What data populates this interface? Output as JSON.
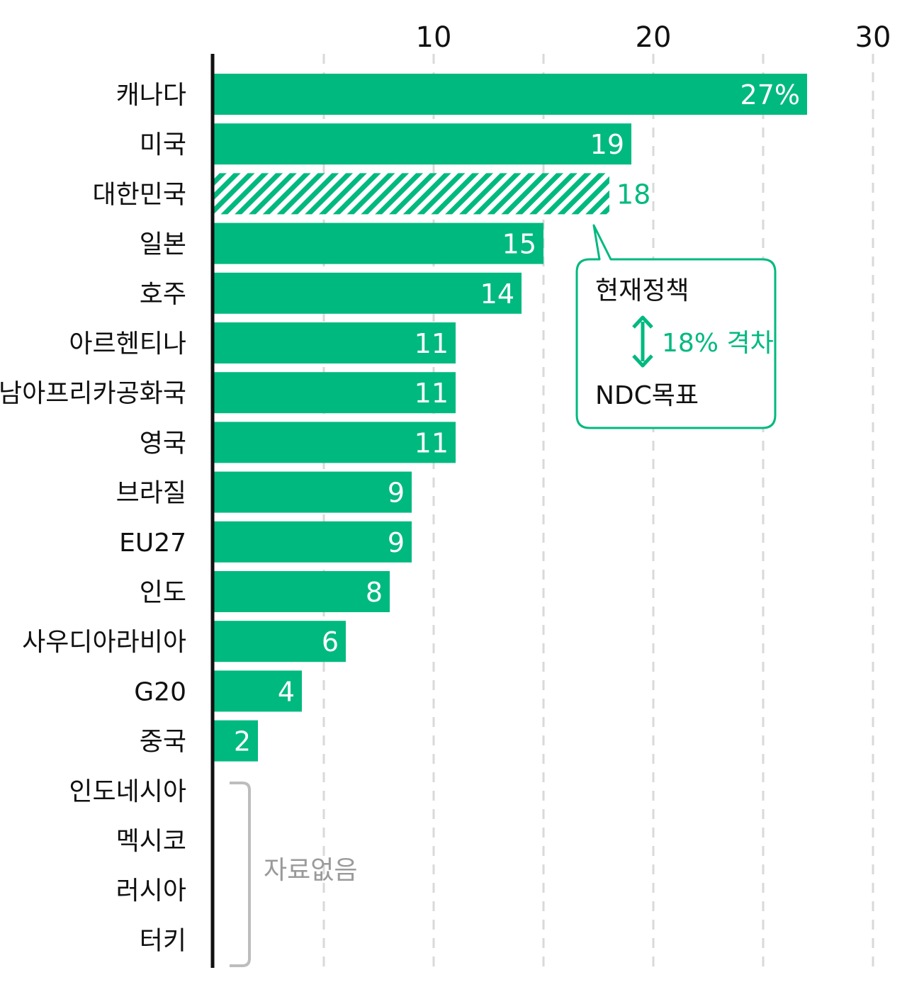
{
  "chart_data": {
    "type": "bar",
    "orientation": "horizontal",
    "categories": [
      "캐나다",
      "미국",
      "대한민국",
      "일본",
      "호주",
      "아르헨티나",
      "남아프리카공화국",
      "영국",
      "브라질",
      "EU27",
      "인도",
      "사우디아라비아",
      "G20",
      "중국",
      "인도네시아",
      "멕시코",
      "러시아",
      "터키"
    ],
    "values": [
      27,
      19,
      18,
      15,
      14,
      11,
      11,
      11,
      9,
      9,
      8,
      6,
      4,
      2,
      null,
      null,
      null,
      null
    ],
    "value_labels": [
      "27%",
      "19",
      "18",
      "15",
      "14",
      "11",
      "11",
      "11",
      "9",
      "9",
      "8",
      "6",
      "4",
      "2",
      "",
      "",
      "",
      ""
    ],
    "highlight_category": "대한민국",
    "xlim": [
      0,
      30
    ],
    "x_ticks": [
      10,
      20,
      30
    ],
    "x_tick_labels": [
      "10",
      "20",
      "30"
    ],
    "grid": true,
    "axis_position": "top",
    "no_data_categories": [
      "인도네시아",
      "멕시코",
      "러시아",
      "터키"
    ],
    "no_data_label": "자료없음",
    "annotation": {
      "current_policy_label": "현재정책",
      "gap_label": "18% 격차",
      "ndc_label": "NDC목표"
    },
    "colors": {
      "bar": "#00b97f",
      "highlight": "#00b97f",
      "label_in_bar": "#ffffff",
      "callout_border": "#00b97f",
      "no_data": "#9a9a9a",
      "axis": "#111111",
      "grid": "#d9d9d9"
    }
  }
}
